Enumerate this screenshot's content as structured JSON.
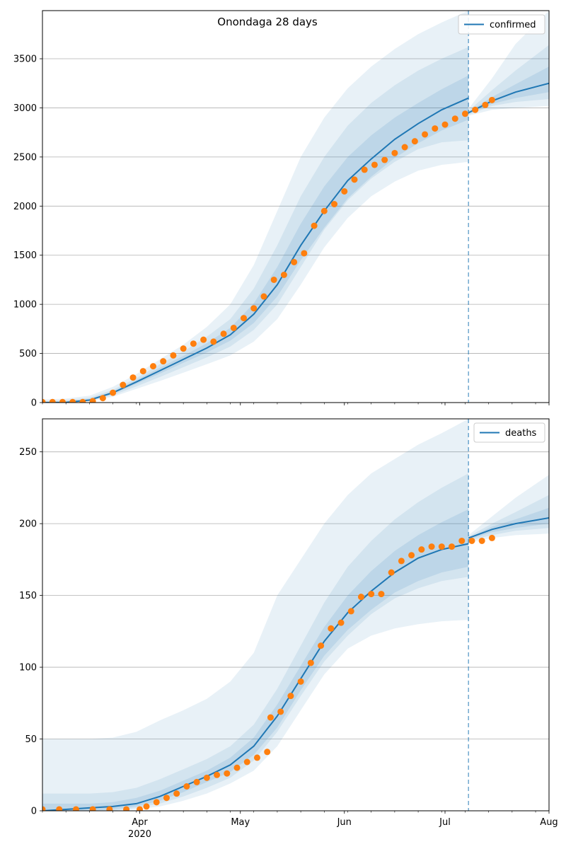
{
  "chart_data": [
    {
      "type": "line",
      "title": "Onondaga 28 days",
      "legend_label": "confirmed",
      "legend_position": "top-right",
      "grid": "horizontal",
      "x_start": "2020-03-03",
      "x_end": "2020-08-01",
      "ylim": [
        0,
        3990
      ],
      "yticks": [
        0,
        500,
        1000,
        1500,
        2000,
        2500,
        3000,
        3500
      ],
      "forecast_boundary": "2020-07-08",
      "model_fit": {
        "x": [
          "2020-03-03",
          "2020-03-10",
          "2020-03-17",
          "2020-03-24",
          "2020-03-31",
          "2020-04-07",
          "2020-04-14",
          "2020-04-21",
          "2020-04-28",
          "2020-05-05",
          "2020-05-12",
          "2020-05-19",
          "2020-05-26",
          "2020-06-02",
          "2020-06-09",
          "2020-06-16",
          "2020-06-23",
          "2020-06-30",
          "2020-07-08"
        ],
        "y": [
          0,
          2,
          25,
          100,
          210,
          325,
          440,
          555,
          690,
          900,
          1200,
          1600,
          1950,
          2260,
          2480,
          2680,
          2840,
          2980,
          3100
        ]
      },
      "forecast": {
        "x": [
          "2020-07-08",
          "2020-07-15",
          "2020-07-22",
          "2020-08-01"
        ],
        "y": [
          2950,
          3070,
          3160,
          3250
        ]
      },
      "bands": [
        {
          "opacity": 0.1,
          "x": [
            "2020-03-03",
            "2020-03-10",
            "2020-03-17",
            "2020-03-24",
            "2020-03-31",
            "2020-04-07",
            "2020-04-14",
            "2020-04-21",
            "2020-04-28",
            "2020-05-05",
            "2020-05-12",
            "2020-05-19",
            "2020-05-26",
            "2020-06-02",
            "2020-06-09",
            "2020-06-16",
            "2020-06-23",
            "2020-06-30",
            "2020-07-08"
          ],
          "upper": [
            30,
            40,
            70,
            160,
            290,
            440,
            590,
            770,
            1000,
            1400,
            1950,
            2500,
            2900,
            3200,
            3420,
            3600,
            3750,
            3870,
            3990
          ],
          "lower": [
            0,
            0,
            10,
            60,
            140,
            220,
            305,
            390,
            480,
            620,
            850,
            1200,
            1580,
            1880,
            2100,
            2250,
            2360,
            2420,
            2450
          ]
        },
        {
          "opacity": 0.1,
          "x": [
            "2020-03-03",
            "2020-03-10",
            "2020-03-17",
            "2020-03-24",
            "2020-03-31",
            "2020-04-07",
            "2020-04-14",
            "2020-04-21",
            "2020-04-28",
            "2020-05-05",
            "2020-05-12",
            "2020-05-19",
            "2020-05-26",
            "2020-06-02",
            "2020-06-09",
            "2020-06-16",
            "2020-06-23",
            "2020-06-30",
            "2020-07-08"
          ],
          "upper": [
            15,
            25,
            50,
            130,
            250,
            390,
            520,
            670,
            850,
            1160,
            1600,
            2100,
            2500,
            2820,
            3050,
            3230,
            3380,
            3500,
            3620
          ],
          "lower": [
            0,
            0,
            15,
            75,
            165,
            260,
            360,
            460,
            570,
            740,
            1000,
            1380,
            1760,
            2060,
            2280,
            2450,
            2580,
            2650,
            2670
          ]
        },
        {
          "opacity": 0.12,
          "x": [
            "2020-03-03",
            "2020-03-10",
            "2020-03-17",
            "2020-03-24",
            "2020-03-31",
            "2020-04-07",
            "2020-04-14",
            "2020-04-21",
            "2020-04-28",
            "2020-05-05",
            "2020-05-12",
            "2020-05-19",
            "2020-05-26",
            "2020-06-02",
            "2020-06-09",
            "2020-06-16",
            "2020-06-23",
            "2020-06-30",
            "2020-07-08"
          ],
          "upper": [
            5,
            10,
            35,
            115,
            230,
            355,
            475,
            605,
            760,
            1010,
            1380,
            1820,
            2200,
            2500,
            2720,
            2900,
            3050,
            3190,
            3330
          ],
          "lower": [
            0,
            0,
            20,
            88,
            190,
            295,
            405,
            510,
            630,
            810,
            1080,
            1450,
            1780,
            2080,
            2300,
            2490,
            2640,
            2770,
            2880
          ]
        },
        {
          "opacity": 0.1,
          "x": [
            "2020-07-08",
            "2020-07-15",
            "2020-07-22",
            "2020-08-01"
          ],
          "upper": [
            2990,
            3300,
            3650,
            3990
          ],
          "lower": [
            2920,
            2980,
            3000,
            3020
          ]
        },
        {
          "opacity": 0.1,
          "x": [
            "2020-07-08",
            "2020-07-15",
            "2020-07-22",
            "2020-08-01"
          ],
          "upper": [
            2970,
            3180,
            3380,
            3640
          ],
          "lower": [
            2930,
            3020,
            3060,
            3090
          ]
        },
        {
          "opacity": 0.12,
          "x": [
            "2020-07-08",
            "2020-07-15",
            "2020-07-22",
            "2020-08-01"
          ],
          "upper": [
            2960,
            3110,
            3240,
            3420
          ],
          "lower": [
            2940,
            3040,
            3100,
            3160
          ]
        }
      ],
      "observed": {
        "x": [
          "2020-03-03",
          "2020-03-06",
          "2020-03-09",
          "2020-03-12",
          "2020-03-15",
          "2020-03-18",
          "2020-03-21",
          "2020-03-24",
          "2020-03-27",
          "2020-03-30",
          "2020-04-02",
          "2020-04-05",
          "2020-04-08",
          "2020-04-11",
          "2020-04-14",
          "2020-04-17",
          "2020-04-20",
          "2020-04-23",
          "2020-04-26",
          "2020-04-29",
          "2020-05-02",
          "2020-05-05",
          "2020-05-08",
          "2020-05-11",
          "2020-05-14",
          "2020-05-17",
          "2020-05-20",
          "2020-05-23",
          "2020-05-26",
          "2020-05-29",
          "2020-06-01",
          "2020-06-04",
          "2020-06-07",
          "2020-06-10",
          "2020-06-13",
          "2020-06-16",
          "2020-06-19",
          "2020-06-22",
          "2020-06-25",
          "2020-06-28",
          "2020-07-01",
          "2020-07-04",
          "2020-07-07",
          "2020-07-10",
          "2020-07-13",
          "2020-07-15"
        ],
        "y": [
          5,
          5,
          5,
          5,
          5,
          15,
          45,
          100,
          180,
          255,
          320,
          370,
          420,
          480,
          550,
          600,
          640,
          620,
          700,
          760,
          860,
          960,
          1080,
          1250,
          1300,
          1430,
          1520,
          1800,
          1950,
          2020,
          2150,
          2270,
          2370,
          2420,
          2470,
          2540,
          2600,
          2660,
          2730,
          2790,
          2830,
          2890,
          2940,
          2980,
          3030,
          3080
        ]
      }
    },
    {
      "type": "line",
      "legend_label": "deaths",
      "legend_position": "top-right",
      "grid": "horizontal",
      "x_start": "2020-03-03",
      "x_end": "2020-08-01",
      "xticks": [
        {
          "date": "2020-04-01",
          "label": "Apr",
          "sublabel": "2020"
        },
        {
          "date": "2020-05-01",
          "label": "May"
        },
        {
          "date": "2020-06-01",
          "label": "Jun"
        },
        {
          "date": "2020-07-01",
          "label": "Jul"
        },
        {
          "date": "2020-08-01",
          "label": "Aug"
        }
      ],
      "ylim": [
        0,
        273
      ],
      "yticks": [
        0,
        50,
        100,
        150,
        200,
        250
      ],
      "forecast_boundary": "2020-07-08",
      "model_fit": {
        "x": [
          "2020-03-03",
          "2020-03-10",
          "2020-03-17",
          "2020-03-24",
          "2020-03-31",
          "2020-04-07",
          "2020-04-14",
          "2020-04-21",
          "2020-04-28",
          "2020-05-05",
          "2020-05-12",
          "2020-05-19",
          "2020-05-26",
          "2020-06-02",
          "2020-06-09",
          "2020-06-16",
          "2020-06-23",
          "2020-06-30",
          "2020-07-08"
        ],
        "y": [
          0,
          1,
          2,
          3,
          5,
          10,
          17,
          24,
          32,
          45,
          66,
          92,
          118,
          138,
          153,
          166,
          176,
          182,
          186
        ]
      },
      "forecast": {
        "x": [
          "2020-07-08",
          "2020-07-15",
          "2020-07-22",
          "2020-08-01"
        ],
        "y": [
          190,
          196,
          200,
          204
        ]
      },
      "bands": [
        {
          "opacity": 0.1,
          "x": [
            "2020-03-03",
            "2020-03-17",
            "2020-03-24",
            "2020-03-31",
            "2020-04-07",
            "2020-04-14",
            "2020-04-21",
            "2020-04-28",
            "2020-05-05",
            "2020-05-12",
            "2020-05-19",
            "2020-05-26",
            "2020-06-02",
            "2020-06-09",
            "2020-06-16",
            "2020-06-23",
            "2020-06-30",
            "2020-07-08"
          ],
          "upper": [
            50,
            50,
            51,
            55,
            63,
            70,
            78,
            90,
            110,
            150,
            175,
            200,
            220,
            235,
            245,
            255,
            263,
            273
          ],
          "lower": [
            0,
            0,
            0,
            1,
            3,
            7,
            12,
            19,
            28,
            45,
            70,
            95,
            113,
            122,
            127,
            130,
            132,
            133
          ]
        },
        {
          "opacity": 0.1,
          "x": [
            "2020-03-03",
            "2020-03-17",
            "2020-03-24",
            "2020-03-31",
            "2020-04-07",
            "2020-04-14",
            "2020-04-21",
            "2020-04-28",
            "2020-05-05",
            "2020-05-12",
            "2020-05-19",
            "2020-05-26",
            "2020-06-02",
            "2020-06-09",
            "2020-06-16",
            "2020-06-23",
            "2020-06-30",
            "2020-07-08"
          ],
          "upper": [
            12,
            12,
            13,
            16,
            22,
            29,
            36,
            45,
            60,
            85,
            115,
            145,
            170,
            188,
            203,
            215,
            225,
            235
          ],
          "lower": [
            0,
            0,
            0,
            2,
            5,
            10,
            16,
            23,
            35,
            55,
            80,
            104,
            122,
            137,
            148,
            155,
            160,
            163
          ]
        },
        {
          "opacity": 0.12,
          "x": [
            "2020-03-03",
            "2020-03-17",
            "2020-03-24",
            "2020-03-31",
            "2020-04-07",
            "2020-04-14",
            "2020-04-21",
            "2020-04-28",
            "2020-05-05",
            "2020-05-12",
            "2020-05-19",
            "2020-05-26",
            "2020-06-02",
            "2020-06-09",
            "2020-06-16",
            "2020-06-23",
            "2020-06-30",
            "2020-07-08"
          ],
          "upper": [
            5,
            5,
            6,
            9,
            14,
            21,
            28,
            37,
            51,
            74,
            101,
            128,
            150,
            167,
            181,
            192,
            201,
            210
          ],
          "lower": [
            0,
            0,
            1,
            3,
            7,
            13,
            20,
            27,
            39,
            58,
            84,
            108,
            126,
            140,
            152,
            160,
            166,
            170
          ]
        },
        {
          "opacity": 0.1,
          "x": [
            "2020-07-08",
            "2020-07-15",
            "2020-07-22",
            "2020-08-01"
          ],
          "upper": [
            192,
            205,
            218,
            234
          ],
          "lower": [
            187,
            190,
            192,
            193
          ]
        },
        {
          "opacity": 0.1,
          "x": [
            "2020-07-08",
            "2020-07-15",
            "2020-07-22",
            "2020-08-01"
          ],
          "upper": [
            191,
            200,
            208,
            220
          ],
          "lower": [
            188,
            192,
            195,
            197
          ]
        },
        {
          "opacity": 0.12,
          "x": [
            "2020-07-08",
            "2020-07-15",
            "2020-07-22",
            "2020-08-01"
          ],
          "upper": [
            190,
            198,
            203,
            211
          ],
          "lower": [
            189,
            194,
            197,
            200
          ]
        }
      ],
      "observed": {
        "x": [
          "2020-03-03",
          "2020-03-08",
          "2020-03-13",
          "2020-03-18",
          "2020-03-23",
          "2020-03-28",
          "2020-04-01",
          "2020-04-03",
          "2020-04-06",
          "2020-04-09",
          "2020-04-12",
          "2020-04-15",
          "2020-04-18",
          "2020-04-21",
          "2020-04-24",
          "2020-04-27",
          "2020-04-30",
          "2020-05-03",
          "2020-05-06",
          "2020-05-09",
          "2020-05-10",
          "2020-05-13",
          "2020-05-16",
          "2020-05-19",
          "2020-05-22",
          "2020-05-25",
          "2020-05-28",
          "2020-05-31",
          "2020-06-03",
          "2020-06-06",
          "2020-06-09",
          "2020-06-12",
          "2020-06-15",
          "2020-06-18",
          "2020-06-21",
          "2020-06-24",
          "2020-06-27",
          "2020-06-30",
          "2020-07-03",
          "2020-07-06",
          "2020-07-09",
          "2020-07-12",
          "2020-07-15"
        ],
        "y": [
          1,
          1,
          1,
          1,
          1,
          1,
          1,
          3,
          6,
          9,
          12,
          17,
          20,
          23,
          25,
          26,
          30,
          34,
          37,
          41,
          65,
          69,
          80,
          90,
          103,
          115,
          127,
          131,
          139,
          149,
          151,
          151,
          166,
          174,
          178,
          182,
          184,
          184,
          184,
          188,
          188,
          188,
          190
        ]
      }
    }
  ]
}
